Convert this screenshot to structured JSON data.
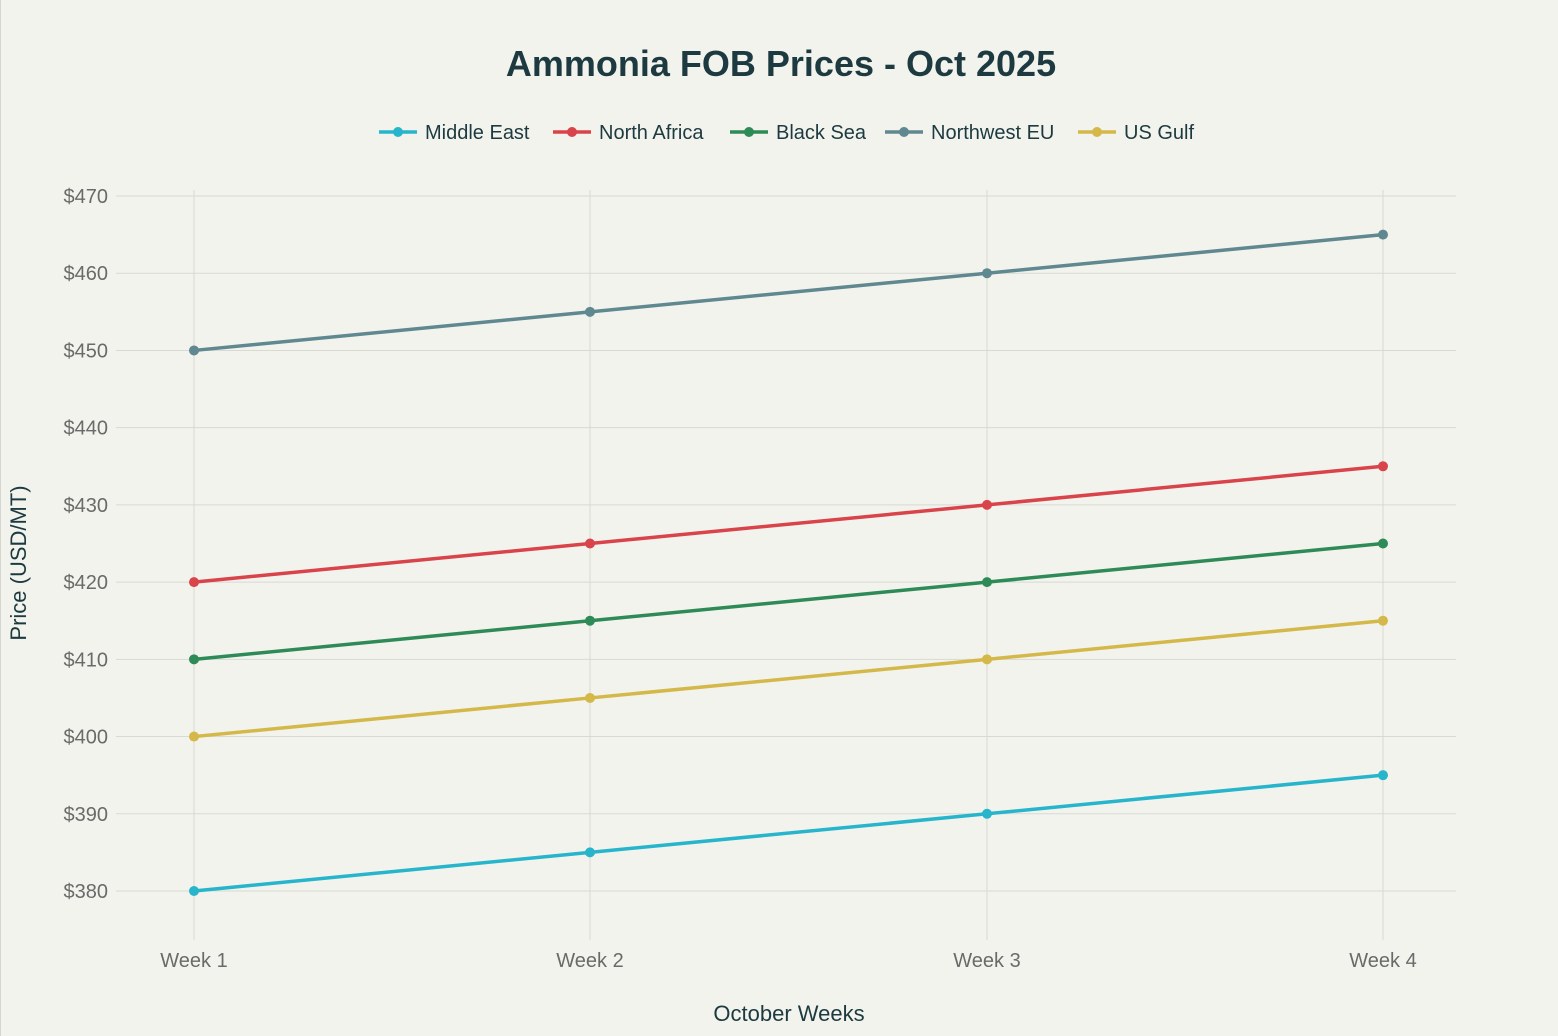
{
  "chart_data": {
    "type": "line",
    "title": "Ammonia FOB Prices - Oct 2025",
    "xlabel": "October Weeks",
    "ylabel": "Price (USD/MT)",
    "categories": [
      "Week 1",
      "Week 2",
      "Week 3",
      "Week 4"
    ],
    "ylim": [
      374,
      470
    ],
    "yticks": [
      380,
      390,
      400,
      410,
      420,
      430,
      440,
      450,
      460,
      470
    ],
    "ytick_labels": [
      "$380",
      "$390",
      "$400",
      "$410",
      "$420",
      "$430",
      "$440",
      "$450",
      "$460",
      "$470"
    ],
    "grid": true,
    "legend_position": "top-center",
    "series": [
      {
        "name": "Middle East",
        "color": "#27b5cc",
        "values": [
          380,
          385,
          390,
          395
        ]
      },
      {
        "name": "North Africa",
        "color": "#d9434a",
        "values": [
          420,
          425,
          430,
          435
        ]
      },
      {
        "name": "Black Sea",
        "color": "#2e8b57",
        "values": [
          410,
          415,
          420,
          425
        ]
      },
      {
        "name": "Northwest EU",
        "color": "#5f8890",
        "values": [
          450,
          455,
          460,
          465
        ]
      },
      {
        "name": "US Gulf",
        "color": "#d4b84a",
        "values": [
          400,
          405,
          410,
          415
        ]
      }
    ]
  }
}
